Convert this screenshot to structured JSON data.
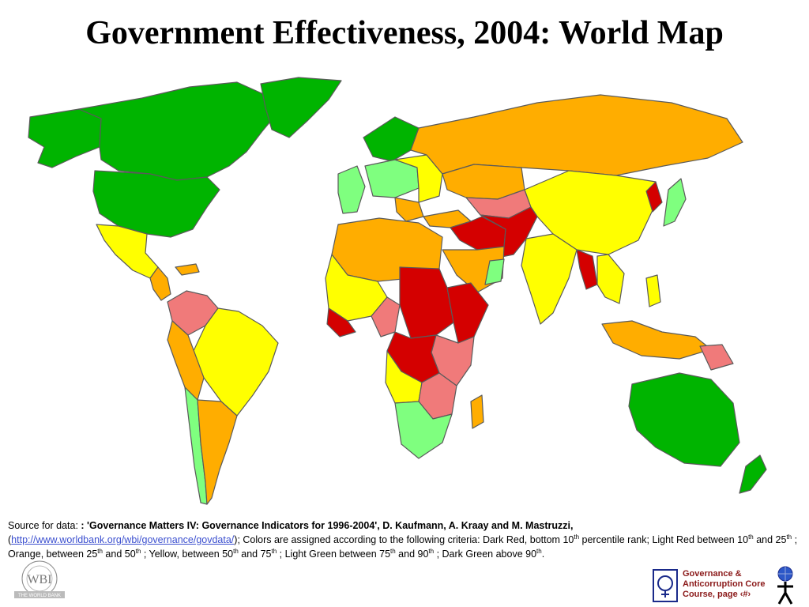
{
  "title": "Government Effectiveness, 2004: World Map",
  "legend_colors": {
    "dark_red": "#d40000",
    "light_red": "#f07a7a",
    "orange": "#ffad00",
    "yellow": "#ffff00",
    "light_green": "#7fff7f",
    "dark_green": "#00b400",
    "borders": "#5a5a5a"
  },
  "caption": {
    "source_prefix": "Source for data: ",
    "source_title": ": 'Governance Matters IV: Governance Indicators for 1996-2004', D. Kaufmann, A. Kraay and M. Mastruzzi,",
    "paren_open": "(",
    "link": "http://www.worldbank.org/wbi/governance/govdata/",
    "after_link": ");  Colors are assigned according to the following criteria:  Dark Red, bottom 10",
    "th1": "th",
    "t2": " percentile rank; Light Red between 10",
    "th2": "th",
    "t3": " and 25",
    "th3": "th",
    "t4": " ; Orange, between 25",
    "th4": "th",
    "t5": "  and 50",
    "th5": "th",
    "t6": " ; Yellow, between 50",
    "th6": "th",
    "t7": "  and 75",
    "th7": "th",
    "t8": " ; Light  Green between 75",
    "th8": "th",
    "t9": "  and 90",
    "th9": "th",
    "t10": "  ; Dark Green above 90",
    "th10": "th",
    "t11": "."
  },
  "logo": {
    "wbi_text": "WBI",
    "ring_text": "WORLD BANK INSTITUTE",
    "band_text": "THE WORLD BANK"
  },
  "footer": {
    "line1": "Governance &",
    "line2": "Anticorruption Core",
    "line3": "Course, page ‹#›"
  }
}
